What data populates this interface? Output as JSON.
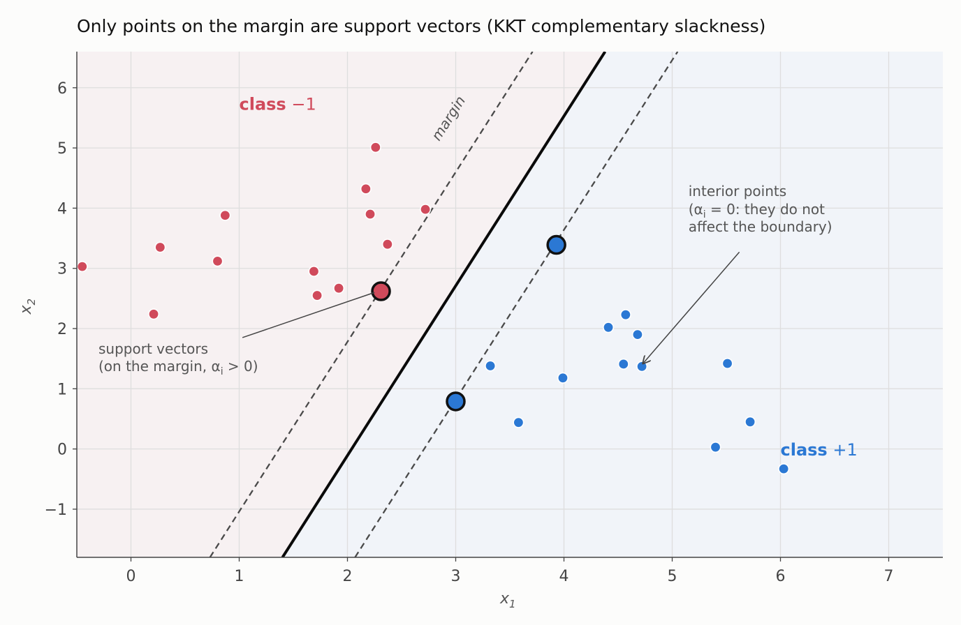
{
  "chart_data": {
    "type": "scatter",
    "title": "Only points on the margin are support vectors (KKT complementary slackness)",
    "xlabel": "x",
    "xlabel_sub": "1",
    "ylabel": "x",
    "ylabel_sub": "2",
    "xlim": [
      -0.5,
      7.5
    ],
    "ylim": [
      -1.8,
      6.6
    ],
    "xticks": [
      0,
      1,
      2,
      3,
      4,
      5,
      6,
      7
    ],
    "yticks": [
      -1,
      0,
      1,
      2,
      3,
      4,
      5,
      6
    ],
    "ytick_labels": [
      "−1",
      "0",
      "1",
      "2",
      "3",
      "4",
      "5",
      "6"
    ],
    "grid": true,
    "colors": {
      "negative": "#d04a5b",
      "positive": "#2b78d4",
      "negative_region": "#f7f1f2",
      "positive_region": "#f1f4f9",
      "boundary": "#0a0a0a",
      "margin": "#4a4a4a"
    },
    "boundary": {
      "x": [
        1.4,
        4.38
      ],
      "y": [
        -1.8,
        6.6
      ]
    },
    "margin_lines": [
      {
        "x": [
          0.73,
          3.71
        ],
        "y": [
          -1.8,
          6.6
        ]
      },
      {
        "x": [
          2.07,
          5.05
        ],
        "y": [
          -1.8,
          6.6
        ]
      }
    ],
    "margin_label": "margin",
    "series": [
      {
        "class": "−1",
        "points": [
          [
            -0.45,
            3.03
          ],
          [
            0.21,
            2.24
          ],
          [
            0.27,
            3.35
          ],
          [
            0.8,
            3.12
          ],
          [
            0.87,
            3.88
          ],
          [
            1.69,
            2.95
          ],
          [
            1.72,
            2.55
          ],
          [
            1.92,
            2.67
          ],
          [
            2.17,
            4.32
          ],
          [
            2.21,
            3.9
          ],
          [
            2.26,
            5.01
          ],
          [
            2.37,
            3.4
          ],
          [
            2.72,
            3.98
          ]
        ],
        "support_vectors": [
          [
            2.31,
            2.62
          ]
        ]
      },
      {
        "class": "+1",
        "points": [
          [
            3.32,
            1.38
          ],
          [
            3.58,
            0.44
          ],
          [
            3.99,
            1.18
          ],
          [
            4.41,
            2.02
          ],
          [
            4.55,
            1.41
          ],
          [
            4.57,
            2.23
          ],
          [
            4.68,
            1.9
          ],
          [
            4.72,
            1.37
          ],
          [
            5.4,
            0.03
          ],
          [
            5.51,
            1.42
          ],
          [
            5.72,
            0.45
          ],
          [
            6.03,
            -0.33
          ]
        ],
        "support_vectors": [
          [
            3.0,
            0.79
          ],
          [
            3.93,
            3.39
          ]
        ]
      }
    ],
    "annotations": {
      "support": {
        "lines": [
          "support vectors",
          "(on the margin, α",
          "i",
          " > 0)"
        ],
        "text_xy": [
          -0.3,
          1.84
        ],
        "arrow_to": [
          2.25,
          2.6
        ]
      },
      "interior": {
        "lines": [
          "interior points",
          "(α",
          "i",
          " = 0: they do not",
          "affect the boundary)"
        ],
        "text_xy": [
          5.15,
          3.62
        ],
        "arrow_to": [
          4.73,
          1.42
        ]
      }
    },
    "class_labels": [
      {
        "bold": "class",
        "rest": " −1",
        "xy": [
          1.0,
          5.63
        ],
        "color_key": "negative"
      },
      {
        "bold": "class",
        "rest": " +1",
        "xy": [
          6.0,
          -0.11
        ],
        "color_key": "positive"
      }
    ]
  }
}
